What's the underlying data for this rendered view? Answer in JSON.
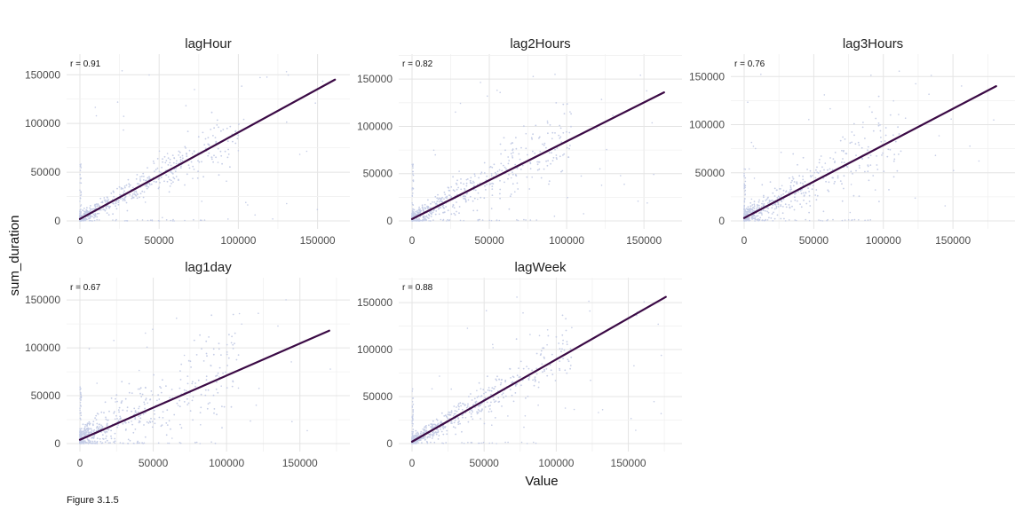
{
  "figure": {
    "caption": "Figure 3.1.5",
    "xlabel": "Value",
    "ylabel": "sum_duration"
  },
  "colors": {
    "points": "#c5cde6",
    "fit_line": "#3b0a45"
  },
  "chart_data": [
    {
      "type": "scatter",
      "title": "lagHour",
      "annotation": "r = 0.91",
      "xlim": [
        0,
        162000
      ],
      "ylim": [
        0,
        163000
      ],
      "x_ticks": [
        0,
        50000,
        100000,
        150000
      ],
      "x_tick_labels": [
        "0",
        "50000",
        "100000",
        "150000"
      ],
      "y_ticks": [
        0,
        50000,
        100000,
        150000
      ],
      "y_tick_labels": [
        "0",
        "50000",
        "100000",
        "150000"
      ],
      "fit_line": {
        "x": [
          0,
          161000
        ],
        "y": [
          2000,
          145000
        ]
      },
      "grid": true
    },
    {
      "type": "scatter",
      "title": "lag2Hours",
      "annotation": "r = 0.82",
      "xlim": [
        0,
        166000
      ],
      "ylim": [
        0,
        168000
      ],
      "x_ticks": [
        0,
        50000,
        100000,
        150000
      ],
      "x_tick_labels": [
        "0",
        "50000",
        "100000",
        "150000"
      ],
      "y_ticks": [
        0,
        50000,
        100000,
        150000
      ],
      "y_tick_labels": [
        "0",
        "50000",
        "100000",
        "150000"
      ],
      "fit_line": {
        "x": [
          0,
          163000
        ],
        "y": [
          2000,
          136000
        ]
      },
      "grid": true
    },
    {
      "type": "scatter",
      "title": "lag3Hours",
      "annotation": "r = 0.76",
      "xlim": [
        0,
        185000
      ],
      "ylim": [
        0,
        165000
      ],
      "x_ticks": [
        0,
        50000,
        100000,
        150000
      ],
      "x_tick_labels": [
        "0",
        "50000",
        "100000",
        "150000"
      ],
      "y_ticks": [
        0,
        50000,
        100000,
        150000
      ],
      "y_tick_labels": [
        "0",
        "50000",
        "100000",
        "150000"
      ],
      "fit_line": {
        "x": [
          0,
          181000
        ],
        "y": [
          3000,
          140000
        ]
      },
      "grid": true
    },
    {
      "type": "scatter",
      "title": "lag1day",
      "annotation": "r = 0.67",
      "xlim": [
        0,
        175000
      ],
      "ylim": [
        0,
        165000
      ],
      "x_ticks": [
        0,
        50000,
        100000,
        150000
      ],
      "x_tick_labels": [
        "0",
        "50000",
        "100000",
        "150000"
      ],
      "y_ticks": [
        0,
        50000,
        100000,
        150000
      ],
      "y_tick_labels": [
        "0",
        "50000",
        "100000",
        "150000"
      ],
      "fit_line": {
        "x": [
          0,
          170000
        ],
        "y": [
          4000,
          118000
        ]
      },
      "grid": true
    },
    {
      "type": "scatter",
      "title": "lagWeek",
      "annotation": "r = 0.88",
      "xlim": [
        0,
        178000
      ],
      "ylim": [
        0,
        168000
      ],
      "x_ticks": [
        0,
        50000,
        100000,
        150000
      ],
      "x_tick_labels": [
        "0",
        "50000",
        "100000",
        "150000"
      ],
      "y_ticks": [
        0,
        50000,
        100000,
        150000
      ],
      "y_tick_labels": [
        "0",
        "50000",
        "100000",
        "150000"
      ],
      "fit_line": {
        "x": [
          0,
          176000
        ],
        "y": [
          2000,
          156000
        ]
      },
      "grid": true
    }
  ]
}
